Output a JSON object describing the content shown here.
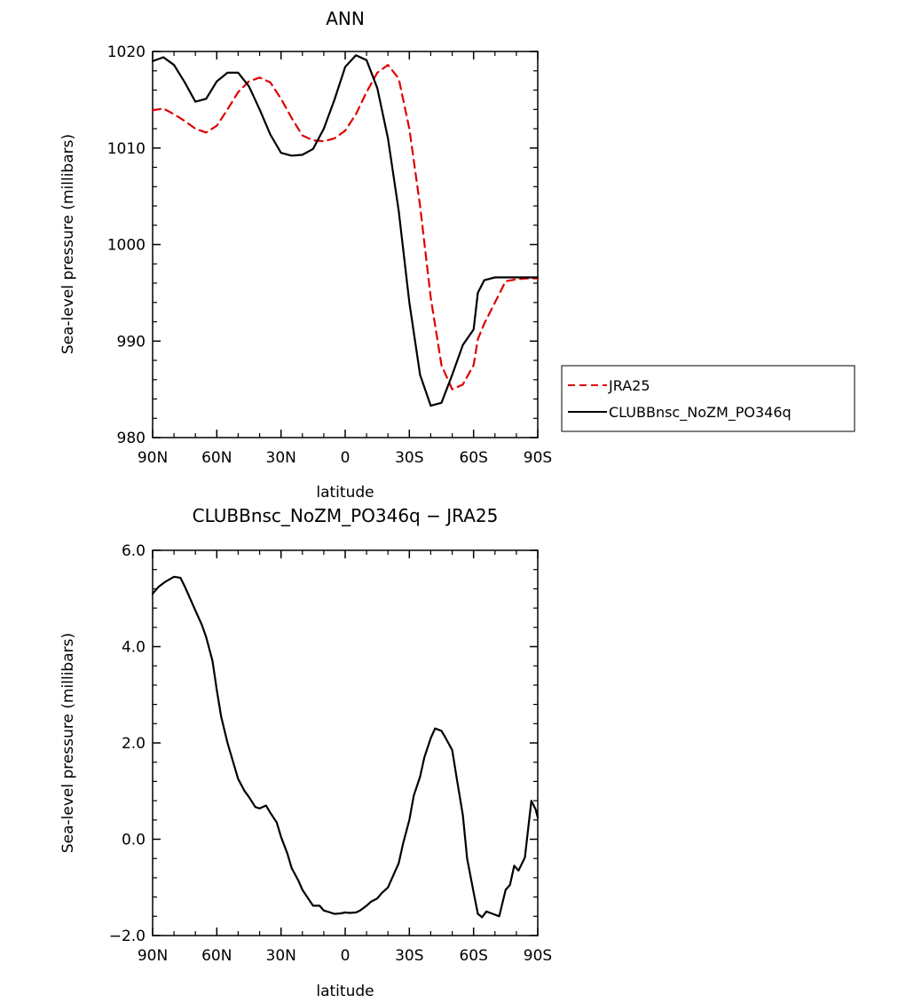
{
  "chart_data": [
    {
      "type": "line",
      "title": "ANN",
      "xlabel": "latitude",
      "ylabel": "Sea-level pressure (millibars)",
      "xlim": [
        90,
        -90
      ],
      "ylim": [
        980,
        1020
      ],
      "x_ticks": [
        90,
        60,
        30,
        0,
        -30,
        -60,
        -90
      ],
      "x_tick_labels": [
        "90N",
        "60N",
        "30N",
        "0",
        "30S",
        "60S",
        "90S"
      ],
      "y_ticks": [
        980,
        990,
        1000,
        1010,
        1020
      ],
      "y_tick_labels": [
        "980",
        "990",
        "1000",
        "1010",
        "1020"
      ],
      "legend_position": "right",
      "series": [
        {
          "name": "JRA25",
          "color": "#e00000",
          "dash": true,
          "x": [
            90,
            85,
            80,
            75,
            70,
            65,
            60,
            55,
            50,
            45,
            40,
            35,
            30,
            25,
            20,
            15,
            10,
            5,
            0,
            -5,
            -10,
            -15,
            -20,
            -25,
            -30,
            -35,
            -40,
            -45,
            -50,
            -55,
            -60,
            -62,
            -65,
            -70,
            -75,
            -80,
            -85,
            -90
          ],
          "y": [
            1013.9,
            1014.1,
            1013.5,
            1012.8,
            1012.0,
            1011.6,
            1012.3,
            1014.0,
            1015.8,
            1016.9,
            1017.3,
            1016.8,
            1015.1,
            1013.1,
            1011.3,
            1010.8,
            1010.7,
            1011.0,
            1011.8,
            1013.5,
            1015.8,
            1017.8,
            1018.6,
            1017.2,
            1012.0,
            1004.0,
            994.5,
            987.5,
            985.0,
            985.5,
            987.5,
            990.2,
            991.8,
            994.0,
            996.2,
            996.4,
            996.5,
            996.5
          ]
        },
        {
          "name": "CLUBBnsc_NoZM_PO346q",
          "color": "#000000",
          "dash": false,
          "x": [
            90,
            85,
            80,
            75,
            70,
            65,
            60,
            55,
            50,
            45,
            40,
            35,
            30,
            25,
            20,
            15,
            10,
            5,
            0,
            -5,
            -10,
            -15,
            -20,
            -25,
            -30,
            -35,
            -40,
            -45,
            -50,
            -55,
            -60,
            -62,
            -65,
            -70,
            -75,
            -80,
            -85,
            -90
          ],
          "y": [
            1019.0,
            1019.4,
            1018.6,
            1016.8,
            1014.8,
            1015.1,
            1016.9,
            1017.8,
            1017.8,
            1016.4,
            1014.0,
            1011.4,
            1009.5,
            1009.2,
            1009.3,
            1009.9,
            1012.0,
            1015.0,
            1018.4,
            1019.6,
            1019.1,
            1016.2,
            1011.0,
            1003.5,
            994.0,
            986.5,
            983.3,
            983.6,
            986.5,
            989.6,
            991.2,
            995.0,
            996.3,
            996.6,
            996.6,
            996.6,
            996.6,
            996.6
          ]
        }
      ]
    },
    {
      "type": "line",
      "title": "CLUBBnsc_NoZM_PO346q − JRA25",
      "xlabel": "latitude",
      "ylabel": "Sea-level pressure (millibars)",
      "xlim": [
        90,
        -90
      ],
      "ylim": [
        -2.0,
        6.0
      ],
      "x_ticks": [
        90,
        60,
        30,
        0,
        -30,
        -60,
        -90
      ],
      "x_tick_labels": [
        "90N",
        "60N",
        "30N",
        "0",
        "30S",
        "60S",
        "90S"
      ],
      "y_ticks": [
        -2,
        0,
        2,
        4,
        6
      ],
      "y_tick_labels": [
        "−2.0",
        "0.0",
        "2.0",
        "4.0",
        "6.0"
      ],
      "series": [
        {
          "color": "#000000",
          "dash": false,
          "x": [
            90,
            87,
            84,
            80,
            77,
            75,
            73,
            70,
            67,
            65,
            62,
            60,
            58,
            55,
            52,
            50,
            47,
            45,
            42,
            40,
            37,
            35,
            32,
            30,
            27,
            25,
            22,
            20,
            17,
            15,
            12,
            10,
            7,
            5,
            2,
            0,
            -2,
            -5,
            -7,
            -10,
            -12,
            -15,
            -17,
            -20,
            -22,
            -25,
            -27,
            -30,
            -32,
            -35,
            -37,
            -40,
            -42,
            -45,
            -47,
            -50,
            -52,
            -55,
            -57,
            -60,
            -62,
            -64,
            -66,
            -69,
            -72,
            -75,
            -77,
            -79,
            -81,
            -84,
            -87,
            -89,
            -90
          ],
          "y": [
            5.1,
            5.25,
            5.35,
            5.45,
            5.43,
            5.25,
            5.05,
            4.75,
            4.45,
            4.2,
            3.7,
            3.1,
            2.55,
            2.0,
            1.55,
            1.25,
            1.0,
            0.88,
            0.67,
            0.64,
            0.7,
            0.55,
            0.35,
            0.05,
            -0.3,
            -0.6,
            -0.85,
            -1.05,
            -1.25,
            -1.38,
            -1.38,
            -1.48,
            -1.52,
            -1.55,
            -1.54,
            -1.52,
            -1.53,
            -1.52,
            -1.48,
            -1.38,
            -1.3,
            -1.23,
            -1.12,
            -1.0,
            -0.8,
            -0.5,
            -0.1,
            0.4,
            0.9,
            1.3,
            1.7,
            2.1,
            2.3,
            2.25,
            2.1,
            1.85,
            1.3,
            0.5,
            -0.4,
            -1.1,
            -1.55,
            -1.62,
            -1.5,
            -1.55,
            -1.6,
            -1.05,
            -0.95,
            -0.55,
            -0.65,
            -0.38,
            0.8,
            0.62,
            0.45
          ]
        }
      ]
    }
  ]
}
